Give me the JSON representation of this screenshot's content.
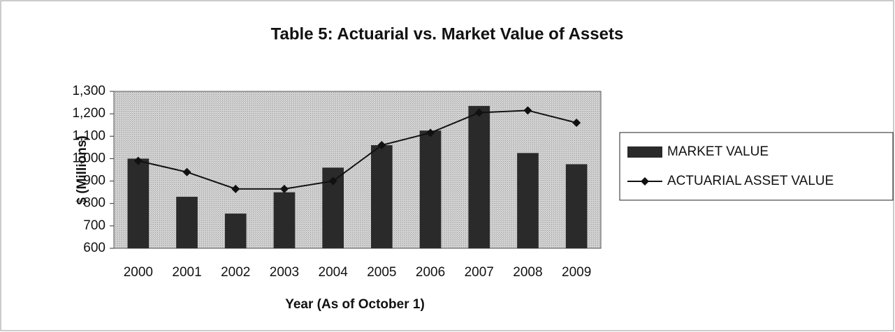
{
  "chart_data": {
    "type": "bar+line",
    "title": "Table 5:  Actuarial vs. Market Value of Assets",
    "x_label": "Year (As of October 1)",
    "y_label": "$ (Millions)",
    "categories": [
      "2000",
      "2001",
      "2002",
      "2003",
      "2004",
      "2005",
      "2006",
      "2007",
      "2008",
      "2009"
    ],
    "series": [
      {
        "name": "MARKET VALUE",
        "type": "bar",
        "color": "#2a2a2a",
        "values": [
          1000,
          830,
          755,
          850,
          960,
          1060,
          1125,
          1235,
          1025,
          975
        ]
      },
      {
        "name": "ACTUARIAL ASSET VALUE",
        "type": "line",
        "color": "#111111",
        "values": [
          990,
          940,
          865,
          865,
          900,
          1060,
          1115,
          1205,
          1215,
          1160
        ]
      }
    ],
    "ylim": [
      600,
      1300
    ],
    "yticks": [
      600,
      700,
      800,
      900,
      {
        "value": 1000,
        "label": "1,000"
      },
      {
        "value": 1100,
        "label": "1,100"
      },
      {
        "value": 1200,
        "label": "1,200"
      },
      {
        "value": 1300,
        "label": "1,300"
      }
    ],
    "legend": "right"
  }
}
